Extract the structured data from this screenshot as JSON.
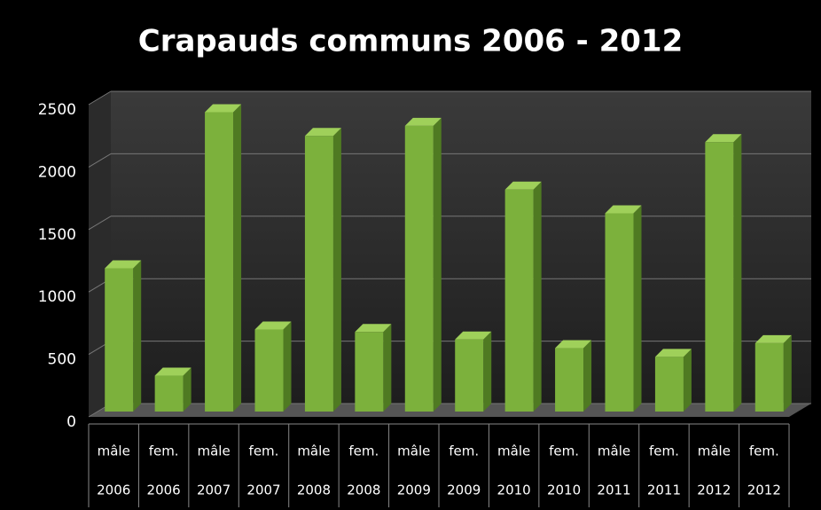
{
  "chart_data": {
    "type": "bar3d",
    "title": "Crapauds communs 2006 - 2012",
    "categories": [
      [
        "mâle",
        "2006"
      ],
      [
        "fem.",
        "2006"
      ],
      [
        "mâle",
        "2007"
      ],
      [
        "fem.",
        "2007"
      ],
      [
        "mâle",
        "2008"
      ],
      [
        "fem.",
        "2008"
      ],
      [
        "mâle",
        "2009"
      ],
      [
        "fem.",
        "2009"
      ],
      [
        "mâle",
        "2010"
      ],
      [
        "fem.",
        "2010"
      ],
      [
        "mâle",
        "2011"
      ],
      [
        "fem.",
        "2011"
      ],
      [
        "mâle",
        "2012"
      ],
      [
        "fem.",
        "2012"
      ]
    ],
    "values": [
      1190,
      330,
      2440,
      700,
      2250,
      680,
      2330,
      620,
      1820,
      550,
      1630,
      480,
      2200,
      590
    ],
    "color": "#7cb13c",
    "ylim": [
      0,
      2500
    ],
    "yticks": [
      0,
      500,
      1000,
      1500,
      2000,
      2500
    ],
    "grid": true
  }
}
